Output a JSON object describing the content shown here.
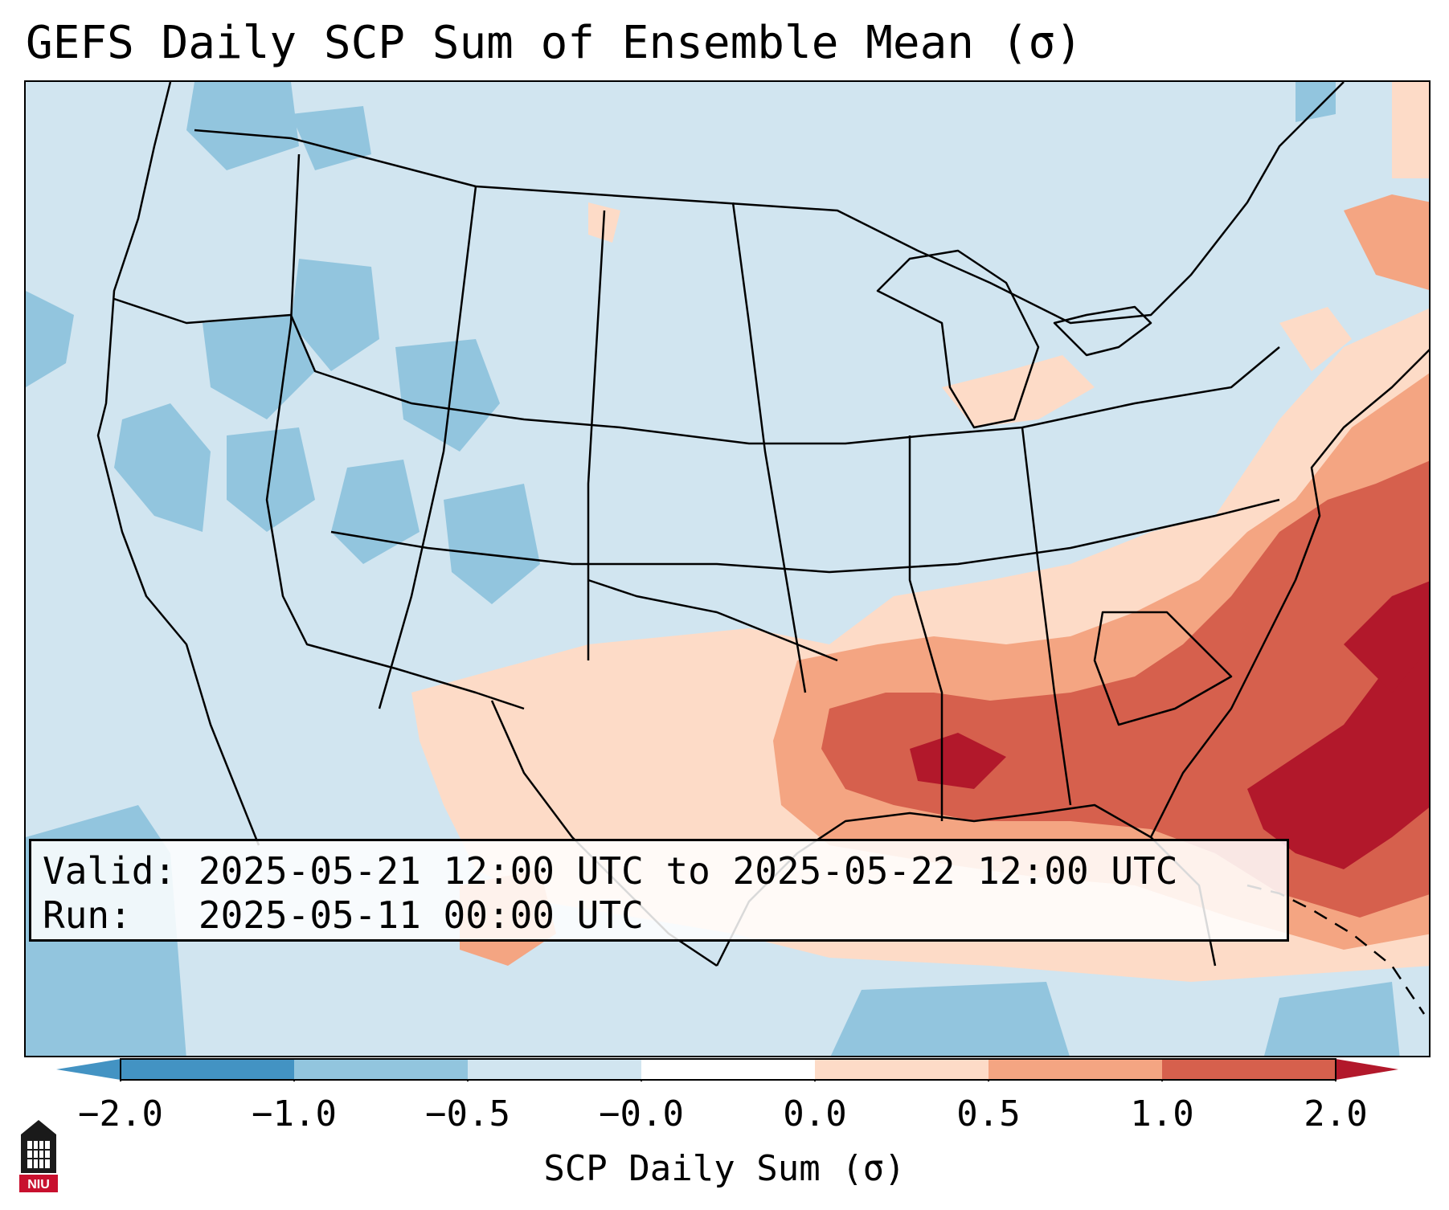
{
  "title": "GEFS Daily SCP Sum of Ensemble Mean (σ)",
  "info": {
    "valid_label": "Valid:",
    "valid_value": "2025-05-21 12:00 UTC to 2025-05-22 12:00 UTC",
    "run_label": "Run:",
    "run_value": "2025-05-11 00:00 UTC"
  },
  "colorbar": {
    "label": "SCP Daily Sum (σ)",
    "ticks": [
      "−2.0",
      "−1.0",
      "−0.5",
      "−0.0",
      "0.0",
      "0.5",
      "1.0",
      "2.0"
    ],
    "colors": [
      "#4393c3",
      "#92c5de",
      "#d1e5f0",
      "#ffffff",
      "#fddbc7",
      "#f4a582",
      "#d6604d",
      "#b2182b"
    ],
    "extend": "both"
  },
  "logo": {
    "text": "NIU",
    "icon": "niu-logo-icon"
  },
  "map": {
    "region": "Continental United States",
    "background_color": "#d1e5f0",
    "pattern": "strongly positive anomalies across the Southeast and western Atlantic; weak negative anomalies across the West"
  }
}
